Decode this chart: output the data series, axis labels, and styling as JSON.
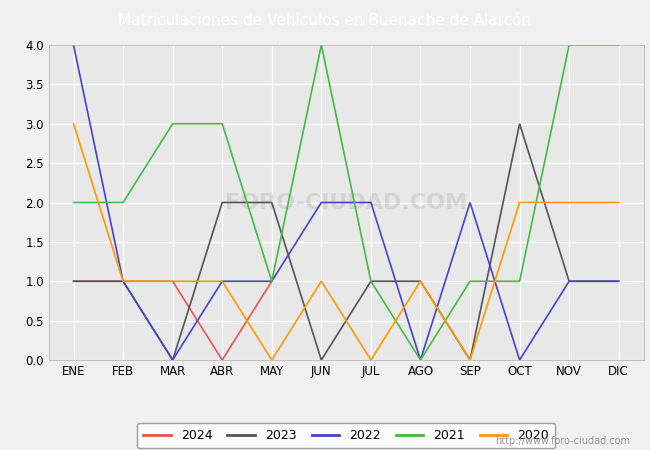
{
  "title": "Matriculaciones de Vehiculos en Buenache de Alarcón",
  "months": [
    "ENE",
    "FEB",
    "MAR",
    "ABR",
    "MAY",
    "JUN",
    "JUL",
    "AGO",
    "SEP",
    "OCT",
    "NOV",
    "DIC"
  ],
  "series": {
    "2024": {
      "values": [
        1,
        1,
        1,
        0,
        1,
        null,
        null,
        null,
        null,
        null,
        null,
        null
      ],
      "color": "#e8534a",
      "linewidth": 1.2
    },
    "2023": {
      "values": [
        1,
        1,
        0,
        2,
        2,
        0,
        1,
        1,
        0,
        3,
        1,
        1
      ],
      "color": "#555555",
      "linewidth": 1.2
    },
    "2022": {
      "values": [
        4,
        1,
        0,
        1,
        1,
        2,
        2,
        0,
        2,
        0,
        1,
        1
      ],
      "color": "#4444cc",
      "linewidth": 1.2
    },
    "2021": {
      "values": [
        2,
        2,
        3,
        3,
        1,
        4,
        1,
        0,
        1,
        1,
        4,
        4
      ],
      "color": "#44bb44",
      "linewidth": 1.2
    },
    "2020": {
      "values": [
        3,
        1,
        1,
        1,
        0,
        1,
        0,
        1,
        0,
        2,
        2,
        2
      ],
      "color": "#ff9900",
      "linewidth": 1.2
    }
  },
  "xlim": [
    -0.5,
    11.5
  ],
  "ylim": [
    0,
    4.0
  ],
  "yticks": [
    0.0,
    0.5,
    1.0,
    1.5,
    2.0,
    2.5,
    3.0,
    3.5,
    4.0
  ],
  "title_fontsize": 11,
  "header_bg": "#4a6fa5",
  "plot_bg": "#e8e8e8",
  "outer_bg": "#f0f0f0",
  "grid_color": "#ffffff",
  "url_text": "http://www.foro-ciudad.com",
  "legend_order": [
    "2024",
    "2023",
    "2022",
    "2021",
    "2020"
  ],
  "watermark": "FORO-CIUDAD.COM"
}
